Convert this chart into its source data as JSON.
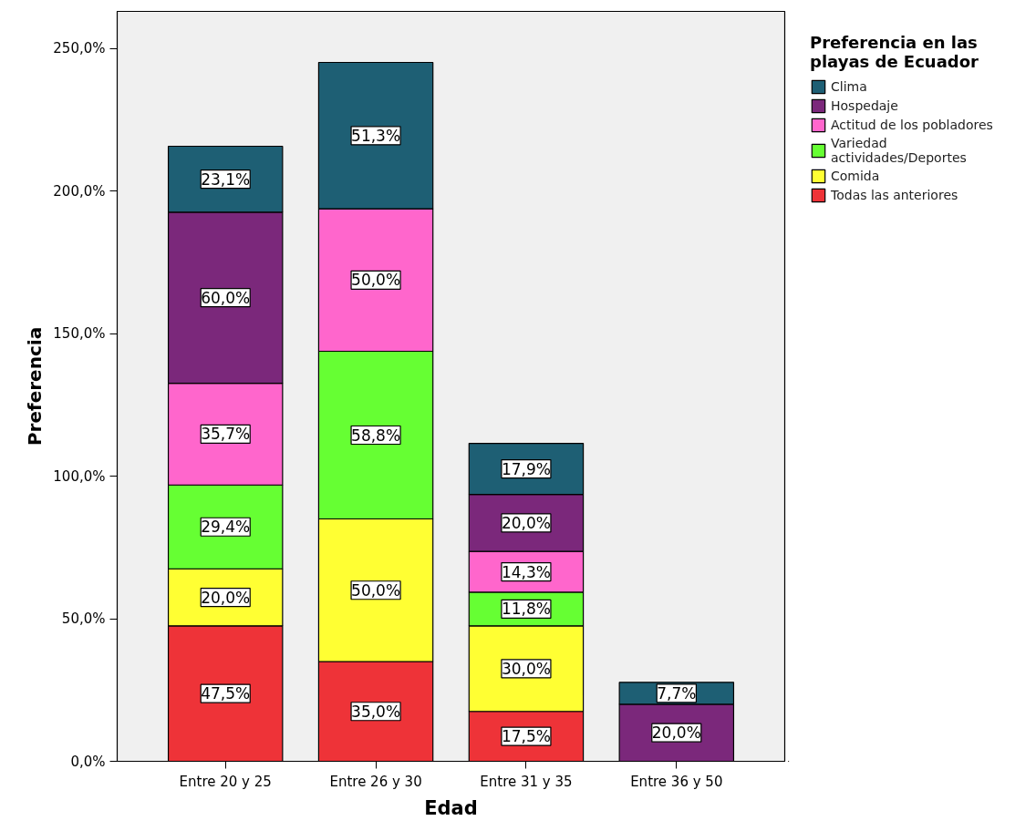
{
  "chart_data": {
    "type": "bar",
    "stacked": true,
    "xlabel": "Edad",
    "ylabel": "Preferencia",
    "legend_title": "Preferencia en las playas de Ecuador",
    "categories": [
      "Entre 20 y 25",
      "Entre 26 y 30",
      "Entre 31 y 35",
      "Entre 36 y 50"
    ],
    "series": [
      {
        "name": "Todas las anteriores",
        "color": "#ee3338",
        "values": [
          47.5,
          35.0,
          17.5,
          null
        ],
        "value_labels": [
          "47,5%",
          "35,0%",
          "17,5%",
          null
        ]
      },
      {
        "name": "Comida",
        "color": "#ffff33",
        "values": [
          20.0,
          50.0,
          30.0,
          null
        ],
        "value_labels": [
          "20,0%",
          "50,0%",
          "30,0%",
          null
        ]
      },
      {
        "name": "Variedad actividades/Deportes",
        "color": "#66ff33",
        "values": [
          29.4,
          58.8,
          11.8,
          null
        ],
        "value_labels": [
          "29,4%",
          "58,8%",
          "11,8%",
          null
        ]
      },
      {
        "name": "Actitud de los pobladores",
        "color": "#ff66cc",
        "values": [
          35.7,
          50.0,
          14.3,
          null
        ],
        "value_labels": [
          "35,7%",
          "50,0%",
          "14,3%",
          null
        ]
      },
      {
        "name": "Hospedaje",
        "color": "#7b287b",
        "values": [
          60.0,
          null,
          20.0,
          20.0
        ],
        "value_labels": [
          "60,0%",
          null,
          "20,0%",
          "20,0%"
        ]
      },
      {
        "name": "Clima",
        "color": "#1e5f74",
        "values": [
          23.1,
          51.3,
          17.9,
          7.7
        ],
        "value_labels": [
          "23,1%",
          "51,3%",
          "17,9%",
          "7,7%"
        ]
      }
    ],
    "ylim": [
      0,
      263
    ],
    "yticks": [
      {
        "value": 0,
        "label": "0,0%"
      },
      {
        "value": 50,
        "label": "50,0%"
      },
      {
        "value": 100,
        "label": "100,0%"
      },
      {
        "value": 150,
        "label": "150,0%"
      },
      {
        "value": 200,
        "label": "200,0%"
      },
      {
        "value": 250,
        "label": "250,0%"
      }
    ],
    "grid": false,
    "legend": "top right"
  }
}
